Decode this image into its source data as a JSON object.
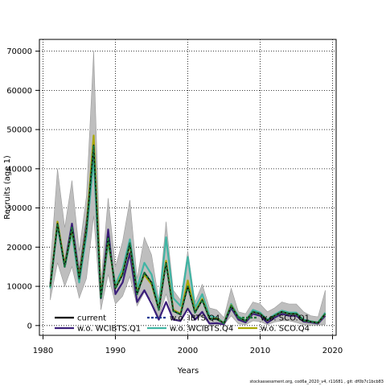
{
  "chart_data": {
    "type": "line",
    "xlabel": "Years",
    "ylabel": "Recruits (age 1)",
    "xlim": [
      1979.5,
      2020.5
    ],
    "ylim": [
      -2500,
      73000
    ],
    "xticks": [
      1980,
      1990,
      2000,
      2010,
      2020
    ],
    "yticks": [
      0,
      10000,
      20000,
      30000,
      40000,
      50000,
      60000,
      70000
    ],
    "grid": true,
    "legend_position": "bottom-left",
    "x": [
      1981,
      1982,
      1983,
      1984,
      1985,
      1986,
      1987,
      1988,
      1989,
      1990,
      1991,
      1992,
      1993,
      1994,
      1995,
      1996,
      1997,
      1998,
      1999,
      2000,
      2001,
      2002,
      2003,
      2004,
      2005,
      2006,
      2007,
      2008,
      2009,
      2010,
      2011,
      2012,
      2013,
      2014,
      2015,
      2016,
      2017,
      2018,
      2019
    ],
    "confidence_band": {
      "color": "#bebebe",
      "lower": [
        6500,
        16000,
        10000,
        15000,
        7000,
        12000,
        28000,
        4000,
        13000,
        5500,
        7500,
        12500,
        5000,
        8500,
        6500,
        2000,
        8000,
        1500,
        900,
        4500,
        1300,
        2500,
        300,
        300,
        200,
        2500,
        400,
        200,
        1200,
        1000,
        200,
        900,
        1200,
        1200,
        800,
        200,
        100,
        100,
        300
      ],
      "upper": [
        15000,
        40000,
        25000,
        37000,
        19000,
        33000,
        70000,
        11000,
        32500,
        15000,
        21500,
        32000,
        12000,
        22500,
        18000,
        6500,
        26500,
        9000,
        6500,
        19000,
        6000,
        10500,
        4500,
        4000,
        2000,
        9500,
        3500,
        3000,
        6000,
        5500,
        3500,
        4500,
        6000,
        5500,
        5500,
        3500,
        2500,
        2200,
        9000
      ]
    },
    "series": [
      {
        "name": "current",
        "color": "#000000",
        "dash": "solid",
        "values": [
          10000,
          26000,
          15000,
          25000,
          12000,
          24500,
          46000,
          7000,
          22500,
          9500,
          13000,
          21000,
          8000,
          13500,
          11000,
          4000,
          16000,
          3700,
          2800,
          10000,
          3300,
          6500,
          1800,
          1600,
          600,
          5000,
          2000,
          1200,
          3500,
          3000,
          1300,
          2500,
          3500,
          3000,
          3000,
          1300,
          1000,
          700,
          3000
        ]
      },
      {
        "name": "w.o. IBTS.Q4",
        "color": "#1f3a93",
        "dash": "dashed",
        "values": [
          10000,
          26000,
          15000,
          25000,
          12000,
          24500,
          46000,
          7000,
          22500,
          9500,
          13000,
          21000,
          8000,
          13500,
          11000,
          4000,
          16000,
          3700,
          2800,
          10000,
          3300,
          6500,
          1800,
          1600,
          600,
          5000,
          2000,
          1200,
          3500,
          3000,
          1300,
          2500,
          3500,
          3000,
          3000,
          1300,
          1000,
          700,
          3000
        ]
      },
      {
        "name": "w.o. SCO.Q1",
        "color": "#1b7837",
        "dash": "dashed",
        "values": [
          10000,
          26000,
          15000,
          25000,
          12000,
          24500,
          46000,
          7000,
          22500,
          9500,
          13000,
          21000,
          8000,
          13500,
          11000,
          4000,
          16000,
          3700,
          2800,
          10000,
          3300,
          6500,
          1800,
          1600,
          600,
          5000,
          2000,
          1200,
          3500,
          3000,
          1300,
          2500,
          3500,
          3000,
          3000,
          1300,
          1000,
          700,
          3000
        ]
      },
      {
        "name": "w.o. WCIBTS.Q1",
        "color": "#3b1f7a",
        "dash": "solid",
        "values": [
          10500,
          26000,
          15500,
          26000,
          13000,
          26000,
          44000,
          7000,
          24500,
          8000,
          11000,
          18500,
          6000,
          9000,
          5500,
          1500,
          6000,
          1500,
          1200,
          4300,
          1500,
          3500,
          500,
          600,
          300,
          4500,
          1500,
          800,
          3000,
          2500,
          700,
          2000,
          3000,
          2500,
          2500,
          1000,
          800,
          500,
          2500
        ]
      },
      {
        "name": "w.o. WCIBTS.Q4",
        "color": "#40b5a4",
        "dash": "solid",
        "values": [
          9500,
          25500,
          15000,
          23500,
          11000,
          23000,
          42500,
          7000,
          21000,
          10500,
          14500,
          22000,
          9500,
          16000,
          13000,
          5000,
          22500,
          7000,
          5000,
          17500,
          4500,
          8000,
          2500,
          2000,
          700,
          5500,
          2300,
          1300,
          4000,
          3300,
          1500,
          2800,
          3800,
          3300,
          3300,
          1500,
          1100,
          800,
          3300
        ]
      },
      {
        "name": "w.o. SCO.Q4",
        "color": "#a9a800",
        "dash": "solid",
        "values": [
          10000,
          26500,
          15500,
          24500,
          12500,
          25000,
          48500,
          7500,
          22000,
          9500,
          13500,
          20500,
          8500,
          13000,
          10500,
          4200,
          16500,
          4000,
          3000,
          11500,
          3500,
          6800,
          1800,
          1800,
          600,
          5200,
          2000,
          1200,
          3500,
          3000,
          1300,
          2500,
          3500,
          3000,
          3000,
          1300,
          1000,
          700,
          3000
        ]
      }
    ],
    "legend": [
      {
        "label": "current",
        "series": 0
      },
      {
        "label": "w.o. IBTS.Q4",
        "series": 1
      },
      {
        "label": "w.o. SCO.Q1",
        "series": 2
      },
      {
        "label": "w.o. WCIBTS.Q1",
        "series": 3
      },
      {
        "label": "w.o. WCIBTS.Q4",
        "series": 4
      },
      {
        "label": "w.o. SCO.Q4",
        "series": 5
      }
    ]
  },
  "footer": "stockassessment.org, cod6a_2020_v4, r11681 , git: df0b7c1bcb83"
}
